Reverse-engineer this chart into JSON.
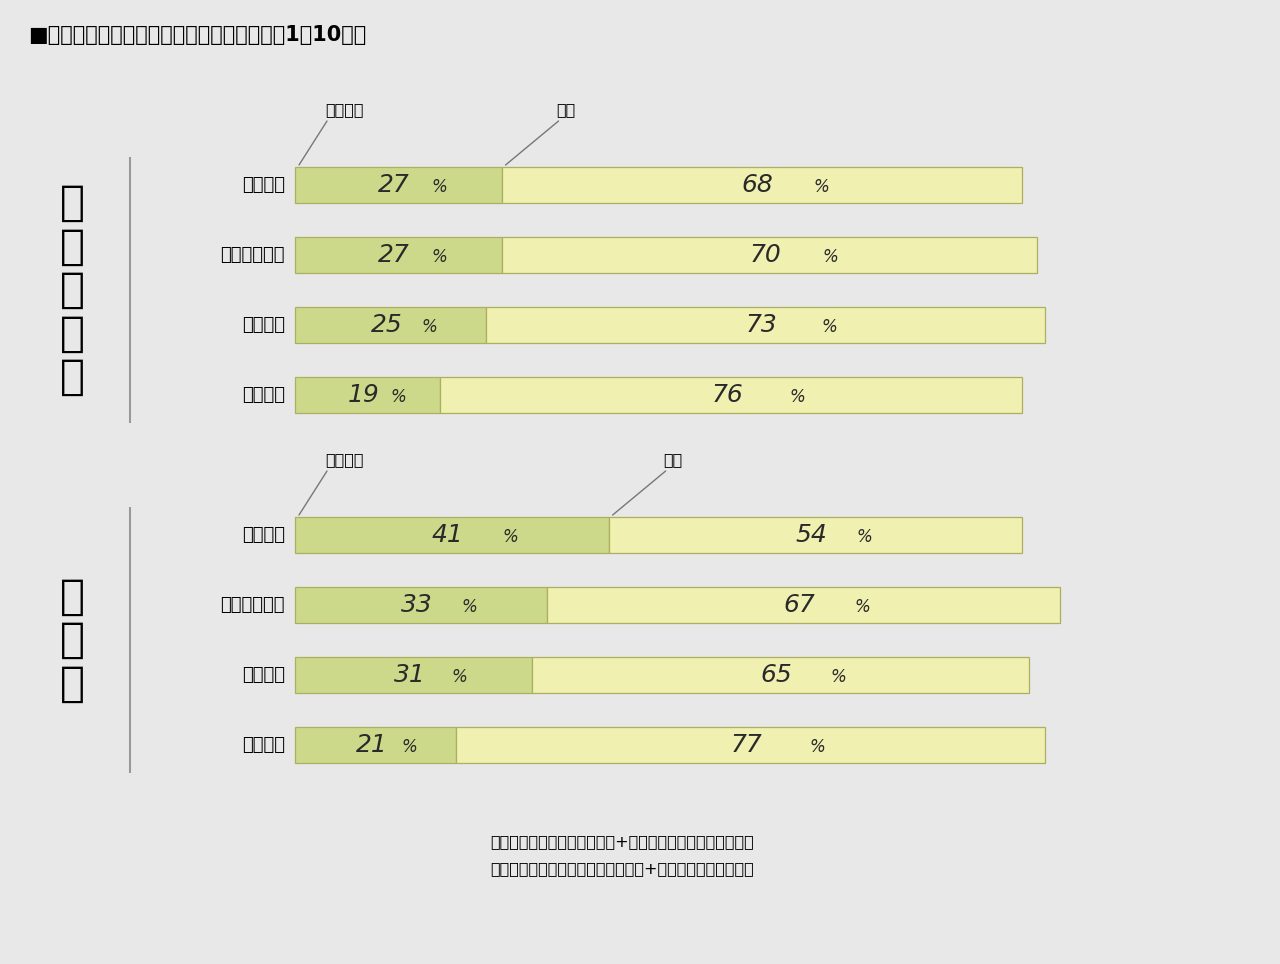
{
  "title": "■コミュニティ深度別　各項目の満足度（筁1〜10年）",
  "background_color": "#e8e8e8",
  "bar_color_dark": "#cdd98a",
  "bar_color_light": "#f0f0b0",
  "bar_border_color": "#aab060",
  "section1_label": "総\n合\n満\n足\n度",
  "section2_label": "防\n犯\n性",
  "section1_rows": [
    "訪問あり",
    "立ち話をする",
    "挨拶する",
    "挨拶なし"
  ],
  "section2_rows": [
    "訪問あり",
    "立ち話をする",
    "挨拶する",
    "挨拶なし"
  ],
  "section1_val1": [
    27,
    27,
    25,
    19
  ],
  "section1_val2": [
    68,
    70,
    73,
    76
  ],
  "section2_val1": [
    41,
    33,
    31,
    21
  ],
  "section2_val2": [
    54,
    67,
    65,
    77
  ],
  "legend1": "大変満足",
  "legend2": "満足",
  "footnote1": "訪問あり：お茶・食事をする+手土産あげる・もらうの合計",
  "footnote2": "挨拶なし：顔がわかるが挨拶しない+顔がわからないの合計"
}
